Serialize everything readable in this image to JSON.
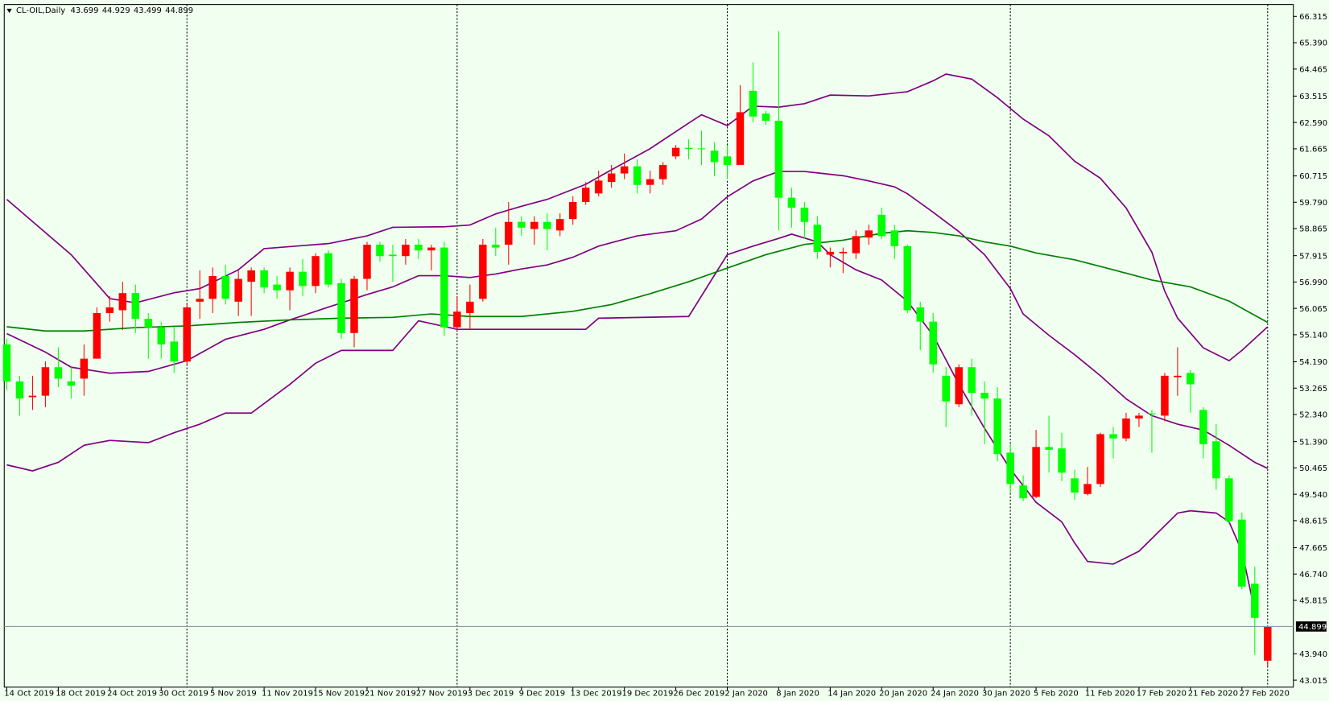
{
  "chart_data": {
    "type": "candlestick",
    "title": "CL-OIL,Daily",
    "categories": [
      "14 Oct 2019",
      null,
      null,
      null,
      "18 Oct 2019",
      null,
      null,
      null,
      "24 Oct 2019",
      null,
      null,
      null,
      "30 Oct 2019",
      null,
      null,
      null,
      "5 Nov 2019",
      null,
      null,
      null,
      "11 Nov 2019",
      null,
      null,
      null,
      "15 Nov 2019",
      null,
      null,
      null,
      "21 Nov 2019",
      null,
      null,
      null,
      "27 Nov 2019",
      null,
      null,
      null,
      "3 Dec 2019",
      null,
      null,
      null,
      "9 Dec 2019",
      null,
      null,
      null,
      "13 Dec 2019",
      null,
      null,
      null,
      "19 Dec 2019",
      null,
      null,
      null,
      "26 Dec 2019",
      null,
      null,
      null,
      "2 Jan 2020",
      null,
      null,
      null,
      "8 Jan 2020",
      null,
      null,
      null,
      "14 Jan 2020",
      null,
      null,
      null,
      "20 Jan 2020",
      null,
      null,
      null,
      "24 Jan 2020",
      null,
      null,
      null,
      "30 Jan 2020",
      null,
      null,
      null,
      "5 Feb 2020",
      null,
      null,
      null,
      "11 Feb 2020",
      null,
      null,
      null,
      "17 Feb 2020",
      null,
      null,
      null,
      "21 Feb 2020",
      null,
      null,
      null,
      "27 Feb 2020",
      null,
      null
    ],
    "open": [
      54.8,
      53.5,
      52.95,
      53.0,
      54.0,
      53.5,
      53.6,
      54.3,
      55.9,
      56.0,
      56.6,
      55.7,
      55.4,
      54.9,
      54.2,
      56.3,
      56.4,
      57.2,
      56.3,
      57.0,
      57.4,
      56.9,
      56.7,
      57.35,
      56.85,
      58.0,
      56.95,
      55.2,
      57.1,
      58.3,
      57.95,
      57.9,
      58.3,
      58.1,
      58.2,
      55.4,
      55.9,
      56.4,
      58.3,
      58.3,
      59.1,
      58.85,
      59.1,
      58.8,
      59.2,
      59.8,
      60.1,
      60.5,
      60.8,
      61.05,
      60.4,
      60.6,
      61.4,
      61.7,
      61.68,
      61.6,
      61.4,
      61.1,
      63.7,
      62.9,
      62.65,
      59.95,
      59.6,
      59.0,
      57.95,
      58.0,
      58.0,
      58.55,
      59.35,
      58.8,
      58.25,
      56.1,
      55.6,
      53.7,
      52.7,
      54.0,
      53.1,
      52.9,
      51.0,
      49.85,
      49.45,
      51.2,
      51.15,
      50.1,
      49.55,
      49.9,
      51.65,
      51.5,
      52.2,
      52.38,
      52.3,
      53.65,
      53.8,
      52.5,
      51.4,
      50.1,
      48.65,
      46.4,
      43.699
    ],
    "high": [
      55.0,
      53.7,
      53.7,
      54.2,
      54.7,
      54.0,
      54.8,
      56.1,
      56.5,
      57.0,
      56.9,
      55.9,
      55.6,
      55.4,
      56.2,
      57.4,
      57.5,
      57.6,
      57.4,
      57.5,
      57.5,
      57.2,
      57.5,
      57.8,
      58.0,
      58.1,
      57.1,
      57.2,
      58.4,
      58.4,
      58.3,
      58.5,
      58.5,
      58.3,
      58.4,
      56.5,
      56.9,
      58.5,
      58.9,
      59.8,
      59.3,
      59.3,
      59.4,
      59.4,
      60.0,
      60.5,
      60.9,
      61.1,
      61.5,
      61.3,
      60.9,
      61.2,
      61.8,
      62.0,
      62.3,
      61.9,
      61.8,
      63.9,
      64.7,
      63.0,
      65.8,
      60.3,
      59.8,
      59.3,
      58.2,
      58.2,
      58.8,
      59.0,
      59.6,
      59.0,
      58.3,
      56.3,
      55.9,
      54.0,
      54.1,
      54.3,
      53.5,
      53.3,
      51.3,
      50.2,
      51.8,
      52.3,
      51.7,
      50.4,
      50.5,
      51.7,
      51.9,
      52.4,
      52.4,
      52.5,
      53.8,
      54.7,
      53.9,
      52.6,
      52.0,
      50.2,
      48.9,
      47.0,
      44.929
    ],
    "low": [
      53.2,
      52.3,
      52.5,
      52.6,
      53.3,
      52.9,
      53.0,
      54.3,
      55.6,
      55.3,
      55.2,
      54.3,
      54.3,
      53.8,
      54.1,
      55.7,
      55.9,
      56.2,
      55.8,
      55.8,
      56.6,
      56.4,
      56.0,
      56.5,
      56.6,
      56.8,
      55.0,
      54.7,
      56.7,
      57.7,
      57.0,
      57.6,
      57.8,
      57.4,
      55.1,
      55.3,
      55.3,
      56.3,
      57.9,
      57.6,
      58.6,
      58.3,
      58.1,
      58.6,
      59.0,
      59.7,
      60.0,
      60.3,
      60.6,
      60.1,
      60.1,
      60.4,
      61.3,
      61.3,
      61.1,
      60.7,
      60.6,
      61.1,
      62.6,
      62.5,
      58.8,
      58.9,
      58.5,
      57.8,
      57.5,
      57.3,
      57.8,
      58.3,
      58.5,
      57.8,
      55.9,
      54.6,
      53.8,
      51.9,
      52.6,
      52.3,
      51.3,
      50.7,
      49.6,
      49.3,
      49.4,
      50.3,
      50.0,
      49.35,
      49.5,
      49.8,
      50.8,
      51.4,
      51.9,
      51.0,
      52.1,
      53.0,
      52.4,
      50.8,
      49.7,
      48.5,
      46.2,
      43.9,
      43.499
    ],
    "close": [
      53.5,
      52.9,
      53.0,
      54.0,
      53.6,
      53.35,
      54.3,
      55.9,
      56.1,
      56.6,
      55.7,
      55.4,
      54.8,
      54.2,
      56.1,
      56.4,
      57.2,
      56.4,
      57.1,
      57.4,
      56.8,
      56.7,
      57.35,
      56.85,
      57.9,
      56.9,
      55.2,
      57.1,
      58.3,
      57.9,
      57.9,
      58.3,
      58.1,
      58.2,
      55.4,
      55.95,
      56.3,
      58.3,
      58.2,
      59.1,
      58.9,
      59.1,
      58.85,
      59.2,
      59.8,
      60.3,
      60.55,
      60.8,
      61.05,
      60.4,
      60.6,
      61.1,
      61.7,
      61.66,
      61.65,
      61.2,
      61.1,
      62.95,
      62.8,
      62.65,
      59.95,
      59.6,
      59.1,
      58.05,
      58.05,
      58.05,
      58.6,
      58.8,
      58.6,
      58.25,
      56.0,
      55.6,
      54.1,
      52.8,
      54.0,
      53.1,
      52.9,
      50.95,
      49.9,
      49.4,
      51.2,
      51.1,
      50.3,
      49.6,
      49.9,
      51.65,
      51.5,
      52.2,
      52.3,
      52.35,
      53.7,
      53.7,
      53.4,
      51.3,
      50.1,
      48.6,
      46.3,
      45.2,
      44.899
    ],
    "bull_color": "#ff0000",
    "bear_color": "#00ff00",
    "lines": [
      {
        "color": "#800080",
        "x": [
          0,
          5,
          8,
          10,
          13,
          15,
          18,
          20,
          25,
          28,
          30,
          34,
          36,
          38,
          40,
          42,
          45,
          47,
          50,
          53,
          54,
          56,
          58,
          60,
          62,
          64,
          67,
          70,
          72,
          73,
          75,
          77,
          79,
          81,
          83,
          85,
          87,
          89,
          90,
          91,
          93,
          95,
          96,
          98
        ],
        "values": [
          59.89,
          57.95,
          56.41,
          56.26,
          56.61,
          56.76,
          57.42,
          58.16,
          58.34,
          58.61,
          58.91,
          58.93,
          58.99,
          59.38,
          59.65,
          59.89,
          60.42,
          60.93,
          61.67,
          62.57,
          62.86,
          62.48,
          63.16,
          63.13,
          63.25,
          63.55,
          63.52,
          63.67,
          64.05,
          64.29,
          64.11,
          63.46,
          62.71,
          62.12,
          61.23,
          60.63,
          59.59,
          58.04,
          56.67,
          55.72,
          54.68,
          54.23,
          54.59,
          55.42
        ]
      },
      {
        "color": "#800080",
        "x": [
          0,
          3,
          5,
          8,
          11,
          14,
          17,
          20,
          22,
          25,
          28,
          30,
          32,
          34,
          36,
          38,
          40,
          42,
          44,
          46,
          49,
          52,
          54,
          56,
          58,
          60,
          62,
          65,
          67,
          69,
          70,
          72,
          74,
          76,
          78,
          79,
          81,
          83,
          85,
          87,
          89,
          91,
          93,
          95,
          97,
          98
        ],
        "values": [
          55.18,
          54.53,
          54.0,
          53.79,
          53.85,
          54.23,
          54.98,
          55.33,
          55.66,
          56.11,
          56.55,
          56.82,
          57.21,
          57.21,
          57.15,
          57.27,
          57.45,
          57.59,
          57.86,
          58.25,
          58.61,
          58.79,
          59.2,
          59.98,
          60.54,
          60.87,
          60.87,
          60.72,
          60.54,
          60.33,
          60.09,
          59.44,
          58.76,
          57.95,
          56.76,
          55.87,
          55.12,
          54.44,
          53.7,
          52.89,
          52.3,
          52.0,
          51.79,
          51.26,
          50.66,
          50.45
        ]
      },
      {
        "color": "#800080",
        "x": [
          0,
          2,
          4,
          6,
          8,
          11,
          13,
          15,
          17,
          19,
          22,
          24,
          26,
          30,
          32,
          35,
          45,
          46,
          53,
          56,
          58,
          60,
          61,
          63,
          64,
          66,
          68,
          70,
          72,
          74,
          76,
          78,
          80,
          82,
          83,
          84,
          86,
          88,
          90,
          91,
          92,
          94,
          95,
          96,
          97
        ],
        "values": [
          50.57,
          50.36,
          50.66,
          51.26,
          51.43,
          51.35,
          51.7,
          52.0,
          52.39,
          52.39,
          53.4,
          54.14,
          54.59,
          54.59,
          55.63,
          55.33,
          55.33,
          55.72,
          55.78,
          57.95,
          58.25,
          58.52,
          58.67,
          58.4,
          57.95,
          57.42,
          57.06,
          56.32,
          55.12,
          53.4,
          51.85,
          50.42,
          49.26,
          48.57,
          47.83,
          47.18,
          47.09,
          47.54,
          48.43,
          48.88,
          48.96,
          48.88,
          48.57,
          47.54,
          45.45
        ]
      },
      {
        "color": "#008000",
        "x": [
          0,
          3,
          6,
          10,
          14,
          18,
          22,
          26,
          30,
          33,
          36,
          40,
          44,
          47,
          50,
          53,
          56,
          59,
          62,
          65,
          68,
          70,
          72,
          74,
          76,
          78,
          80,
          83,
          86,
          89,
          92,
          95,
          98
        ],
        "values": [
          55.42,
          55.27,
          55.27,
          55.39,
          55.45,
          55.57,
          55.66,
          55.72,
          55.75,
          55.87,
          55.78,
          55.78,
          55.96,
          56.2,
          56.58,
          57.0,
          57.48,
          57.95,
          58.31,
          58.46,
          58.7,
          58.79,
          58.73,
          58.61,
          58.4,
          58.25,
          58.01,
          57.77,
          57.42,
          57.06,
          56.82,
          56.32,
          55.57
        ]
      }
    ],
    "separators": [
      14,
      35,
      56,
      78,
      98
    ],
    "last_price": 44.899,
    "xlim": [
      -0.2,
      100
    ],
    "ylim": [
      42.77,
      66.73
    ],
    "yticks": [
      43.015,
      {
        "value": 43.94,
        "label": "43.940"
      },
      45.815,
      {
        "value": 46.74,
        "label": "46.740"
      },
      47.665,
      48.615,
      {
        "value": 49.54,
        "label": "49.540"
      },
      50.465,
      {
        "value": 51.39,
        "label": "51.390"
      },
      {
        "value": 52.34,
        "label": "52.340"
      },
      53.265,
      {
        "value": 54.19,
        "label": "54.190"
      },
      {
        "value": 55.14,
        "label": "55.140"
      },
      56.065,
      {
        "value": 56.99,
        "label": "56.990"
      },
      57.915,
      58.865,
      {
        "value": 59.79,
        "label": "59.790"
      },
      60.715,
      61.665,
      {
        "value": 62.59,
        "label": "62.590"
      },
      63.515,
      64.465,
      {
        "value": 65.39,
        "label": "65.390"
      },
      66.315
    ]
  }
}
